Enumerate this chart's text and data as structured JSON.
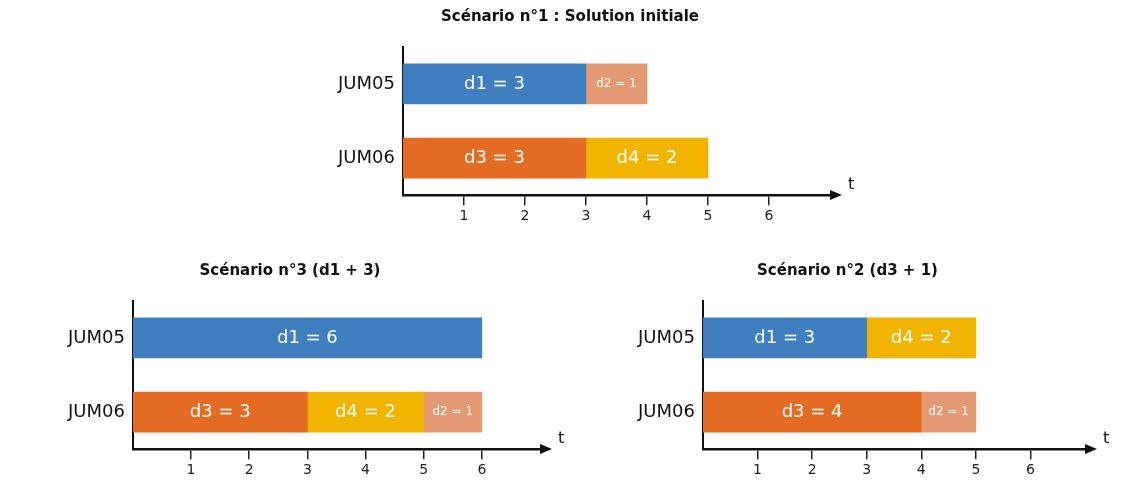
{
  "chart_data": [
    {
      "type": "bar",
      "orientation": "horizontal",
      "stacked": true,
      "title": "Scénario n°1 : Solution initiale",
      "xlabel": "t",
      "categories": [
        "JUM05",
        "JUM06"
      ],
      "xlim": [
        0,
        7
      ],
      "xticks": [
        1,
        2,
        3,
        4,
        5,
        6
      ],
      "grid": false,
      "legend": false,
      "series": [
        {
          "color": "#3f7fc0",
          "values": [
            3,
            null
          ],
          "value_labels": [
            "d1 = 3",
            null
          ]
        },
        {
          "color": "#e36c22",
          "values": [
            null,
            3
          ],
          "value_labels": [
            null,
            "d3 = 3"
          ]
        },
        {
          "color": "#f0b400",
          "values": [
            null,
            2
          ],
          "value_labels": [
            null,
            "d4 = 2"
          ]
        },
        {
          "color": "#e39a73",
          "values": [
            1,
            null
          ],
          "value_labels": [
            "d2 = 1",
            null
          ]
        }
      ]
    },
    {
      "type": "bar",
      "orientation": "horizontal",
      "stacked": true,
      "title": "Scénario n°3 (d1 + 3)",
      "xlabel": "t",
      "categories": [
        "JUM05",
        "JUM06"
      ],
      "xlim": [
        0,
        7
      ],
      "xticks": [
        1,
        2,
        3,
        4,
        5,
        6
      ],
      "grid": false,
      "legend": false,
      "series": [
        {
          "color": "#3f7fc0",
          "values": [
            6,
            null
          ],
          "value_labels": [
            "d1 = 6",
            null
          ]
        },
        {
          "color": "#e36c22",
          "values": [
            null,
            3
          ],
          "value_labels": [
            null,
            "d3 = 3"
          ]
        },
        {
          "color": "#f0b400",
          "values": [
            null,
            2
          ],
          "value_labels": [
            null,
            "d4 = 2"
          ]
        },
        {
          "color": "#e39a73",
          "values": [
            null,
            1
          ],
          "value_labels": [
            null,
            "d2 = 1"
          ]
        }
      ]
    },
    {
      "type": "bar",
      "orientation": "horizontal",
      "stacked": true,
      "title": "Scénario n°2 (d3 + 1)",
      "xlabel": "t",
      "categories": [
        "JUM05",
        "JUM06"
      ],
      "xlim": [
        0,
        7
      ],
      "xticks": [
        1,
        2,
        3,
        4,
        5,
        6
      ],
      "grid": false,
      "legend": false,
      "series": [
        {
          "color": "#3f7fc0",
          "values": [
            3,
            null
          ],
          "value_labels": [
            "d1 = 3",
            null
          ]
        },
        {
          "color": "#e36c22",
          "values": [
            null,
            4
          ],
          "value_labels": [
            null,
            "d3 = 4"
          ]
        },
        {
          "color": "#f0b400",
          "values": [
            2,
            null
          ],
          "value_labels": [
            "d4 = 2",
            null
          ]
        },
        {
          "color": "#e39a73",
          "values": [
            null,
            1
          ],
          "value_labels": [
            null,
            "d2 = 1"
          ]
        }
      ]
    }
  ]
}
